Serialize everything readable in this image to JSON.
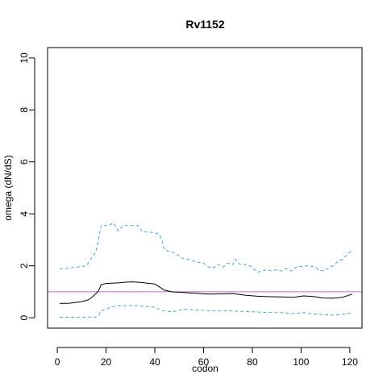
{
  "chart_data": {
    "type": "line",
    "title": "Rv1152",
    "xlabel": "codon",
    "ylabel": "omega (dN/dS)",
    "xlim": [
      -4,
      125
    ],
    "ylim": [
      -0.4,
      10.4
    ],
    "x_ticks": [
      0,
      20,
      40,
      60,
      80,
      100,
      120
    ],
    "y_ticks": [
      0,
      2,
      4,
      6,
      8,
      10
    ],
    "grid": false,
    "reference_line": {
      "y": 1,
      "color": "#cc66cc"
    },
    "series": [
      {
        "role": "estimate",
        "color": "#000000",
        "style": "solid",
        "x": [
          1,
          5,
          10,
          13,
          15,
          17,
          18,
          20,
          22,
          25,
          28,
          31,
          34,
          37,
          40,
          42,
          44,
          47,
          52,
          57,
          62,
          67,
          72,
          77,
          82,
          87,
          92,
          97,
          101,
          105,
          109,
          113,
          117,
          121
        ],
        "y": [
          0.55,
          0.56,
          0.62,
          0.7,
          0.85,
          1.05,
          1.28,
          1.32,
          1.33,
          1.34,
          1.37,
          1.38,
          1.36,
          1.33,
          1.3,
          1.18,
          1.06,
          1.0,
          0.97,
          0.94,
          0.91,
          0.92,
          0.93,
          0.87,
          0.83,
          0.81,
          0.8,
          0.79,
          0.84,
          0.82,
          0.76,
          0.75,
          0.79,
          0.91
        ]
      },
      {
        "role": "upper",
        "color": "#33aaee",
        "style": "dashed",
        "x": [
          1,
          4,
          8,
          12,
          14,
          15,
          16,
          17,
          18,
          19,
          21,
          23,
          24,
          25,
          27,
          30,
          33,
          35,
          37,
          40,
          42,
          43,
          44,
          46,
          48,
          51,
          54,
          57,
          60,
          62,
          64,
          66,
          68,
          70,
          72,
          73,
          75,
          77,
          79,
          81,
          82,
          84,
          86,
          88,
          90,
          92,
          94,
          96,
          98,
          100,
          103,
          106,
          107,
          109,
          111,
          113,
          115,
          117,
          119,
          121
        ],
        "y": [
          1.88,
          1.9,
          1.95,
          2.0,
          2.3,
          2.4,
          2.6,
          3.1,
          3.55,
          3.55,
          3.55,
          3.65,
          3.5,
          3.35,
          3.55,
          3.55,
          3.55,
          3.3,
          3.3,
          3.28,
          3.2,
          2.95,
          2.6,
          2.55,
          2.5,
          2.3,
          2.25,
          2.15,
          2.1,
          1.95,
          1.92,
          2.05,
          1.95,
          2.1,
          2.05,
          2.25,
          2.05,
          2.05,
          2.0,
          1.85,
          1.75,
          1.8,
          1.85,
          1.8,
          1.85,
          1.8,
          1.9,
          1.8,
          1.95,
          1.98,
          2.0,
          1.95,
          1.85,
          1.8,
          1.9,
          2.0,
          2.15,
          2.25,
          2.45,
          2.6
        ]
      },
      {
        "role": "lower",
        "color": "#33aaee",
        "style": "dashed",
        "x": [
          1,
          8,
          16,
          17,
          18,
          20,
          22,
          25,
          28,
          31,
          34,
          37,
          40,
          43,
          47,
          52,
          57,
          62,
          67,
          72,
          77,
          82,
          87,
          92,
          97,
          101,
          105,
          109,
          113,
          117,
          121
        ],
        "y": [
          0.02,
          0.02,
          0.03,
          0.1,
          0.28,
          0.32,
          0.42,
          0.46,
          0.47,
          0.47,
          0.46,
          0.43,
          0.4,
          0.28,
          0.22,
          0.33,
          0.3,
          0.27,
          0.27,
          0.26,
          0.24,
          0.22,
          0.2,
          0.2,
          0.16,
          0.2,
          0.15,
          0.12,
          0.1,
          0.13,
          0.2
        ]
      }
    ]
  }
}
